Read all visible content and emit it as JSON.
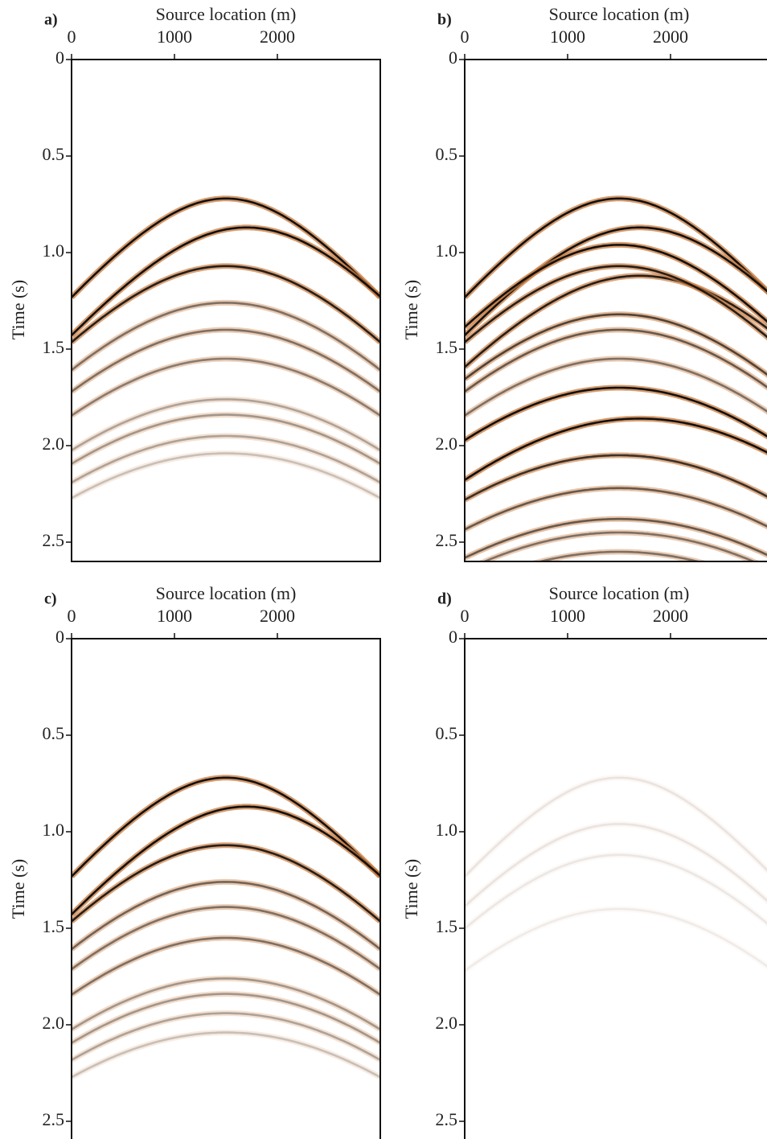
{
  "chart_data": [
    {
      "type": "seismic",
      "title": "a)",
      "x_label": "Source location (m)",
      "y_label": "Time (s)",
      "xlim": [
        0,
        3000
      ],
      "xticks": [
        0,
        1000,
        2000
      ],
      "ylim": [
        0,
        2.6
      ],
      "yticks": [
        0,
        0.5,
        {
          "value": 1,
          "label": "1.0"
        },
        1.5,
        {
          "value": 2,
          "label": "2.0"
        },
        2.5
      ],
      "velocity": 1500,
      "apex_x": [
        1500,
        1700,
        1500,
        1500,
        1500,
        1500,
        1500,
        1500,
        1500,
        1500
      ],
      "apex_t": [
        0.72,
        0.87,
        1.07,
        1.26,
        1.4,
        1.55,
        1.76,
        1.84,
        1.95,
        2.04
      ],
      "amplitude": [
        1,
        1,
        0.9,
        0.5,
        0.5,
        0.45,
        0.3,
        0.35,
        0.3,
        0.2
      ]
    },
    {
      "type": "seismic",
      "title": "b)",
      "x_label": "Source location (m)",
      "y_label": "Time (s)",
      "xlim": [
        0,
        3000
      ],
      "xticks": [
        0,
        1000,
        2000
      ],
      "ylim": [
        0,
        2.6
      ],
      "yticks": [
        0,
        0.5,
        {
          "value": 1,
          "label": "1.0"
        },
        1.5,
        {
          "value": 2,
          "label": "2.0"
        },
        2.5
      ],
      "velocity": 1500,
      "apex_x": [
        1500,
        1700,
        1500,
        1700,
        1500,
        1500,
        1500,
        1500,
        1700,
        1500,
        1500,
        1500,
        1500,
        1500,
        1500
      ],
      "apex_t": [
        0.72,
        0.87,
        0.96,
        1.12,
        1.07,
        1.32,
        1.4,
        1.7,
        1.86,
        2.05,
        1.55,
        2.22,
        2.38,
        2.45,
        2.55
      ],
      "amplitude": [
        1,
        1,
        1,
        0.9,
        0.9,
        0.7,
        0.6,
        1,
        1,
        0.8,
        0.5,
        0.6,
        0.6,
        0.5,
        0.5
      ]
    },
    {
      "type": "seismic",
      "title": "c)",
      "x_label": "Source location (m)",
      "y_label": "Time (s)",
      "xlim": [
        0,
        3000
      ],
      "xticks": [
        0,
        1000,
        2000
      ],
      "ylim": [
        0,
        2.6
      ],
      "yticks": [
        0,
        0.5,
        {
          "value": 1,
          "label": "1.0"
        },
        1.5,
        {
          "value": 2,
          "label": "2.0"
        },
        2.5
      ],
      "velocity": 1500,
      "apex_x": [
        1500,
        1700,
        1500,
        1500,
        1500,
        1500,
        1500,
        1500,
        1500,
        1500
      ],
      "apex_t": [
        0.72,
        0.87,
        1.07,
        1.26,
        1.39,
        1.55,
        1.76,
        1.84,
        1.94,
        2.04
      ],
      "amplitude": [
        1,
        1,
        0.9,
        0.55,
        0.5,
        0.5,
        0.35,
        0.35,
        0.3,
        0.2
      ]
    },
    {
      "type": "seismic",
      "title": "d)",
      "x_label": "Source location (m)",
      "y_label": "Time (s)",
      "xlim": [
        0,
        3000
      ],
      "xticks": [
        0,
        1000,
        2000
      ],
      "ylim": [
        0,
        2.6
      ],
      "yticks": [
        0,
        0.5,
        {
          "value": 1,
          "label": "1.0"
        },
        1.5,
        {
          "value": 2,
          "label": "2.0"
        },
        2.5
      ],
      "velocity": 1500,
      "apex_x": [
        1500,
        1500,
        1500,
        1500
      ],
      "apex_t": [
        0.72,
        0.96,
        1.12,
        1.4
      ],
      "amplitude": [
        0.08,
        0.08,
        0.07,
        0.06
      ]
    }
  ]
}
